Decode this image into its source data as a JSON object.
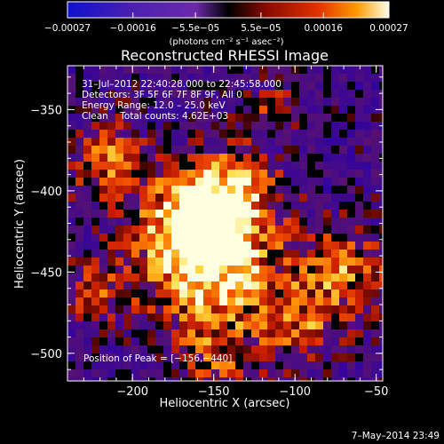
{
  "chart_data": {
    "type": "heatmap",
    "title": "Reconstructed RHESSI Image",
    "xlabel": "Heliocentric X (arcsec)",
    "ylabel": "Heliocentric Y (arcsec)",
    "xlim": [
      -240,
      -46
    ],
    "ylim": [
      -517,
      -323
    ],
    "x_ticks": [
      -200,
      -150,
      -100,
      -50
    ],
    "x_tick_labels": [
      "−200",
      "−150",
      "−100",
      "−50"
    ],
    "y_ticks": [
      -350,
      -400,
      -450,
      -500
    ],
    "y_tick_labels": [
      "−350",
      "−400",
      "−450",
      "−500"
    ],
    "colorbar": {
      "range": [
        -0.00027,
        0.00027
      ],
      "ticks": [
        -0.00027,
        -0.00016,
        -5.5e-05,
        5.5e-05,
        0.00016,
        0.00027
      ],
      "tick_labels": [
        "−0.00027",
        "−0.00016",
        "−5.5e−05",
        "5.5e−05",
        "0.00016",
        "0.00027"
      ],
      "units": "(photons cm⁻² s⁻¹ asec⁻²)"
    },
    "peak": {
      "x": -156,
      "y": -440
    },
    "grid": false,
    "annotations": [
      "31–Jul–2012 22:40:28.000 to 22:45:58.000",
      "Detectors: 3F 5F 6F 7F 8F 9F, All 0",
      "Energy Range: 12.0 – 25.0 keV",
      "Clean    Total counts: 4.62E+03"
    ],
    "peak_label": "Position of Peak = [−156,−440]"
  },
  "footer": {
    "date_stamp": "7–May–2014 23:49"
  },
  "colors": {
    "background": "#000000",
    "text": "#ffffff"
  }
}
